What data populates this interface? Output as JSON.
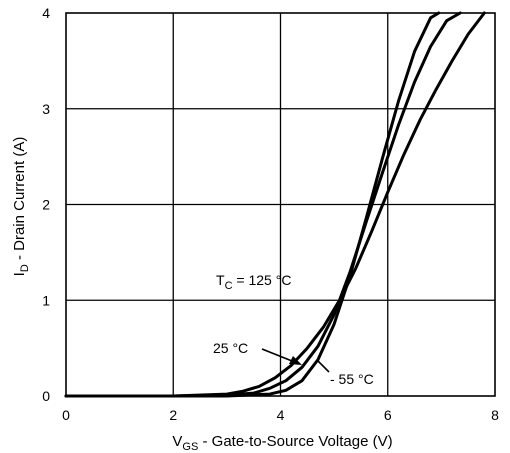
{
  "chart_data": {
    "type": "line",
    "xlim": [
      0,
      8
    ],
    "ylim": [
      0,
      4
    ],
    "x_ticks": [
      "0",
      "2",
      "4",
      "6",
      "8"
    ],
    "y_ticks": [
      "0",
      "1",
      "2",
      "3",
      "4"
    ],
    "grid": true,
    "xlabel": {
      "main": "V",
      "sub": "GS",
      "rest": " - Gate-to-Source Voltage (V)"
    },
    "ylabel": {
      "main": "I",
      "sub": "D",
      "rest": " - Drain Current (A)"
    },
    "series": [
      {
        "label": {
          "main": "T",
          "sub": "C",
          "rest": " = 125 °C"
        },
        "x": [
          0,
          1,
          2,
          3,
          3.3,
          3.6,
          3.9,
          4.2,
          4.5,
          4.8,
          5.1,
          5.4,
          5.7,
          6.0,
          6.3,
          6.6,
          6.9,
          7.2,
          7.5,
          7.8
        ],
        "y": [
          0,
          0,
          0,
          0.02,
          0.05,
          0.1,
          0.19,
          0.32,
          0.5,
          0.72,
          1.0,
          1.33,
          1.72,
          2.13,
          2.52,
          2.88,
          3.2,
          3.5,
          3.78,
          4.0
        ]
      },
      {
        "label": {
          "main": "25 °C",
          "sub": "",
          "rest": ""
        },
        "x": [
          0,
          1,
          2,
          3,
          3.5,
          3.8,
          4.1,
          4.4,
          4.7,
          5.0,
          5.3,
          5.6,
          5.9,
          6.2,
          6.5,
          6.8,
          7.1,
          7.35
        ],
        "y": [
          0,
          0,
          0,
          0.01,
          0.03,
          0.08,
          0.16,
          0.3,
          0.52,
          0.85,
          1.3,
          1.82,
          2.33,
          2.83,
          3.28,
          3.65,
          3.92,
          4.0
        ]
      },
      {
        "label": {
          "main": "- 55 °C",
          "sub": "",
          "rest": ""
        },
        "x": [
          0,
          1,
          2,
          3,
          3.8,
          4.1,
          4.4,
          4.7,
          5.0,
          5.3,
          5.6,
          5.9,
          6.2,
          6.5,
          6.8,
          6.95
        ],
        "y": [
          0,
          0,
          0,
          0,
          0.02,
          0.06,
          0.16,
          0.38,
          0.75,
          1.26,
          1.86,
          2.48,
          3.08,
          3.6,
          3.95,
          4.0
        ]
      }
    ]
  }
}
